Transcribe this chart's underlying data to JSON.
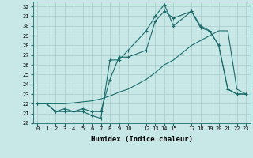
{
  "xlabel": "Humidex (Indice chaleur)",
  "bg_color": "#c8e8e8",
  "line_color": "#1a6b6b",
  "grid_color": "#b0d0d0",
  "xlim": [
    -0.5,
    23.5
  ],
  "ylim": [
    20,
    32.5
  ],
  "yticks": [
    20,
    21,
    22,
    23,
    24,
    25,
    26,
    27,
    28,
    29,
    30,
    31,
    32
  ],
  "xticks": [
    0,
    1,
    2,
    3,
    4,
    5,
    6,
    7,
    8,
    9,
    10,
    12,
    13,
    14,
    15,
    17,
    18,
    19,
    20,
    21,
    22,
    23
  ],
  "xtick_labels": [
    "0",
    "1",
    "2",
    "3",
    "4",
    "5",
    "6",
    "7",
    "8",
    "9",
    "10",
    "12",
    "13",
    "14",
    "15",
    "17",
    "18",
    "19",
    "20",
    "21",
    "22",
    "23"
  ],
  "line1_x": [
    0,
    1,
    2,
    3,
    4,
    5,
    6,
    7,
    8,
    9,
    10,
    12,
    13,
    14,
    15,
    17,
    18,
    19,
    20,
    21,
    22,
    23
  ],
  "line1_y": [
    22.0,
    22.0,
    21.2,
    21.2,
    21.2,
    21.2,
    20.8,
    20.5,
    26.5,
    26.5,
    27.5,
    29.5,
    31.0,
    32.2,
    30.0,
    31.5,
    29.8,
    29.5,
    28.0,
    23.5,
    23.0,
    23.0
  ],
  "line2_x": [
    0,
    1,
    2,
    3,
    4,
    5,
    6,
    7,
    8,
    9,
    10,
    12,
    13,
    14,
    15,
    17,
    18,
    19,
    20,
    21,
    22,
    23
  ],
  "line2_y": [
    22.0,
    22.0,
    21.2,
    21.5,
    21.2,
    21.5,
    21.2,
    21.2,
    24.5,
    26.8,
    26.8,
    27.5,
    30.5,
    31.5,
    30.8,
    31.5,
    30.0,
    29.5,
    28.0,
    23.5,
    23.0,
    23.0
  ],
  "line3_x": [
    0,
    1,
    2,
    3,
    4,
    5,
    6,
    7,
    8,
    9,
    10,
    12,
    13,
    14,
    15,
    17,
    18,
    19,
    20,
    21,
    22,
    23
  ],
  "line3_y": [
    22.0,
    22.0,
    22.0,
    22.0,
    22.1,
    22.2,
    22.3,
    22.5,
    22.8,
    23.2,
    23.5,
    24.5,
    25.2,
    26.0,
    26.5,
    28.0,
    28.5,
    29.0,
    29.5,
    29.5,
    23.5,
    23.0
  ]
}
